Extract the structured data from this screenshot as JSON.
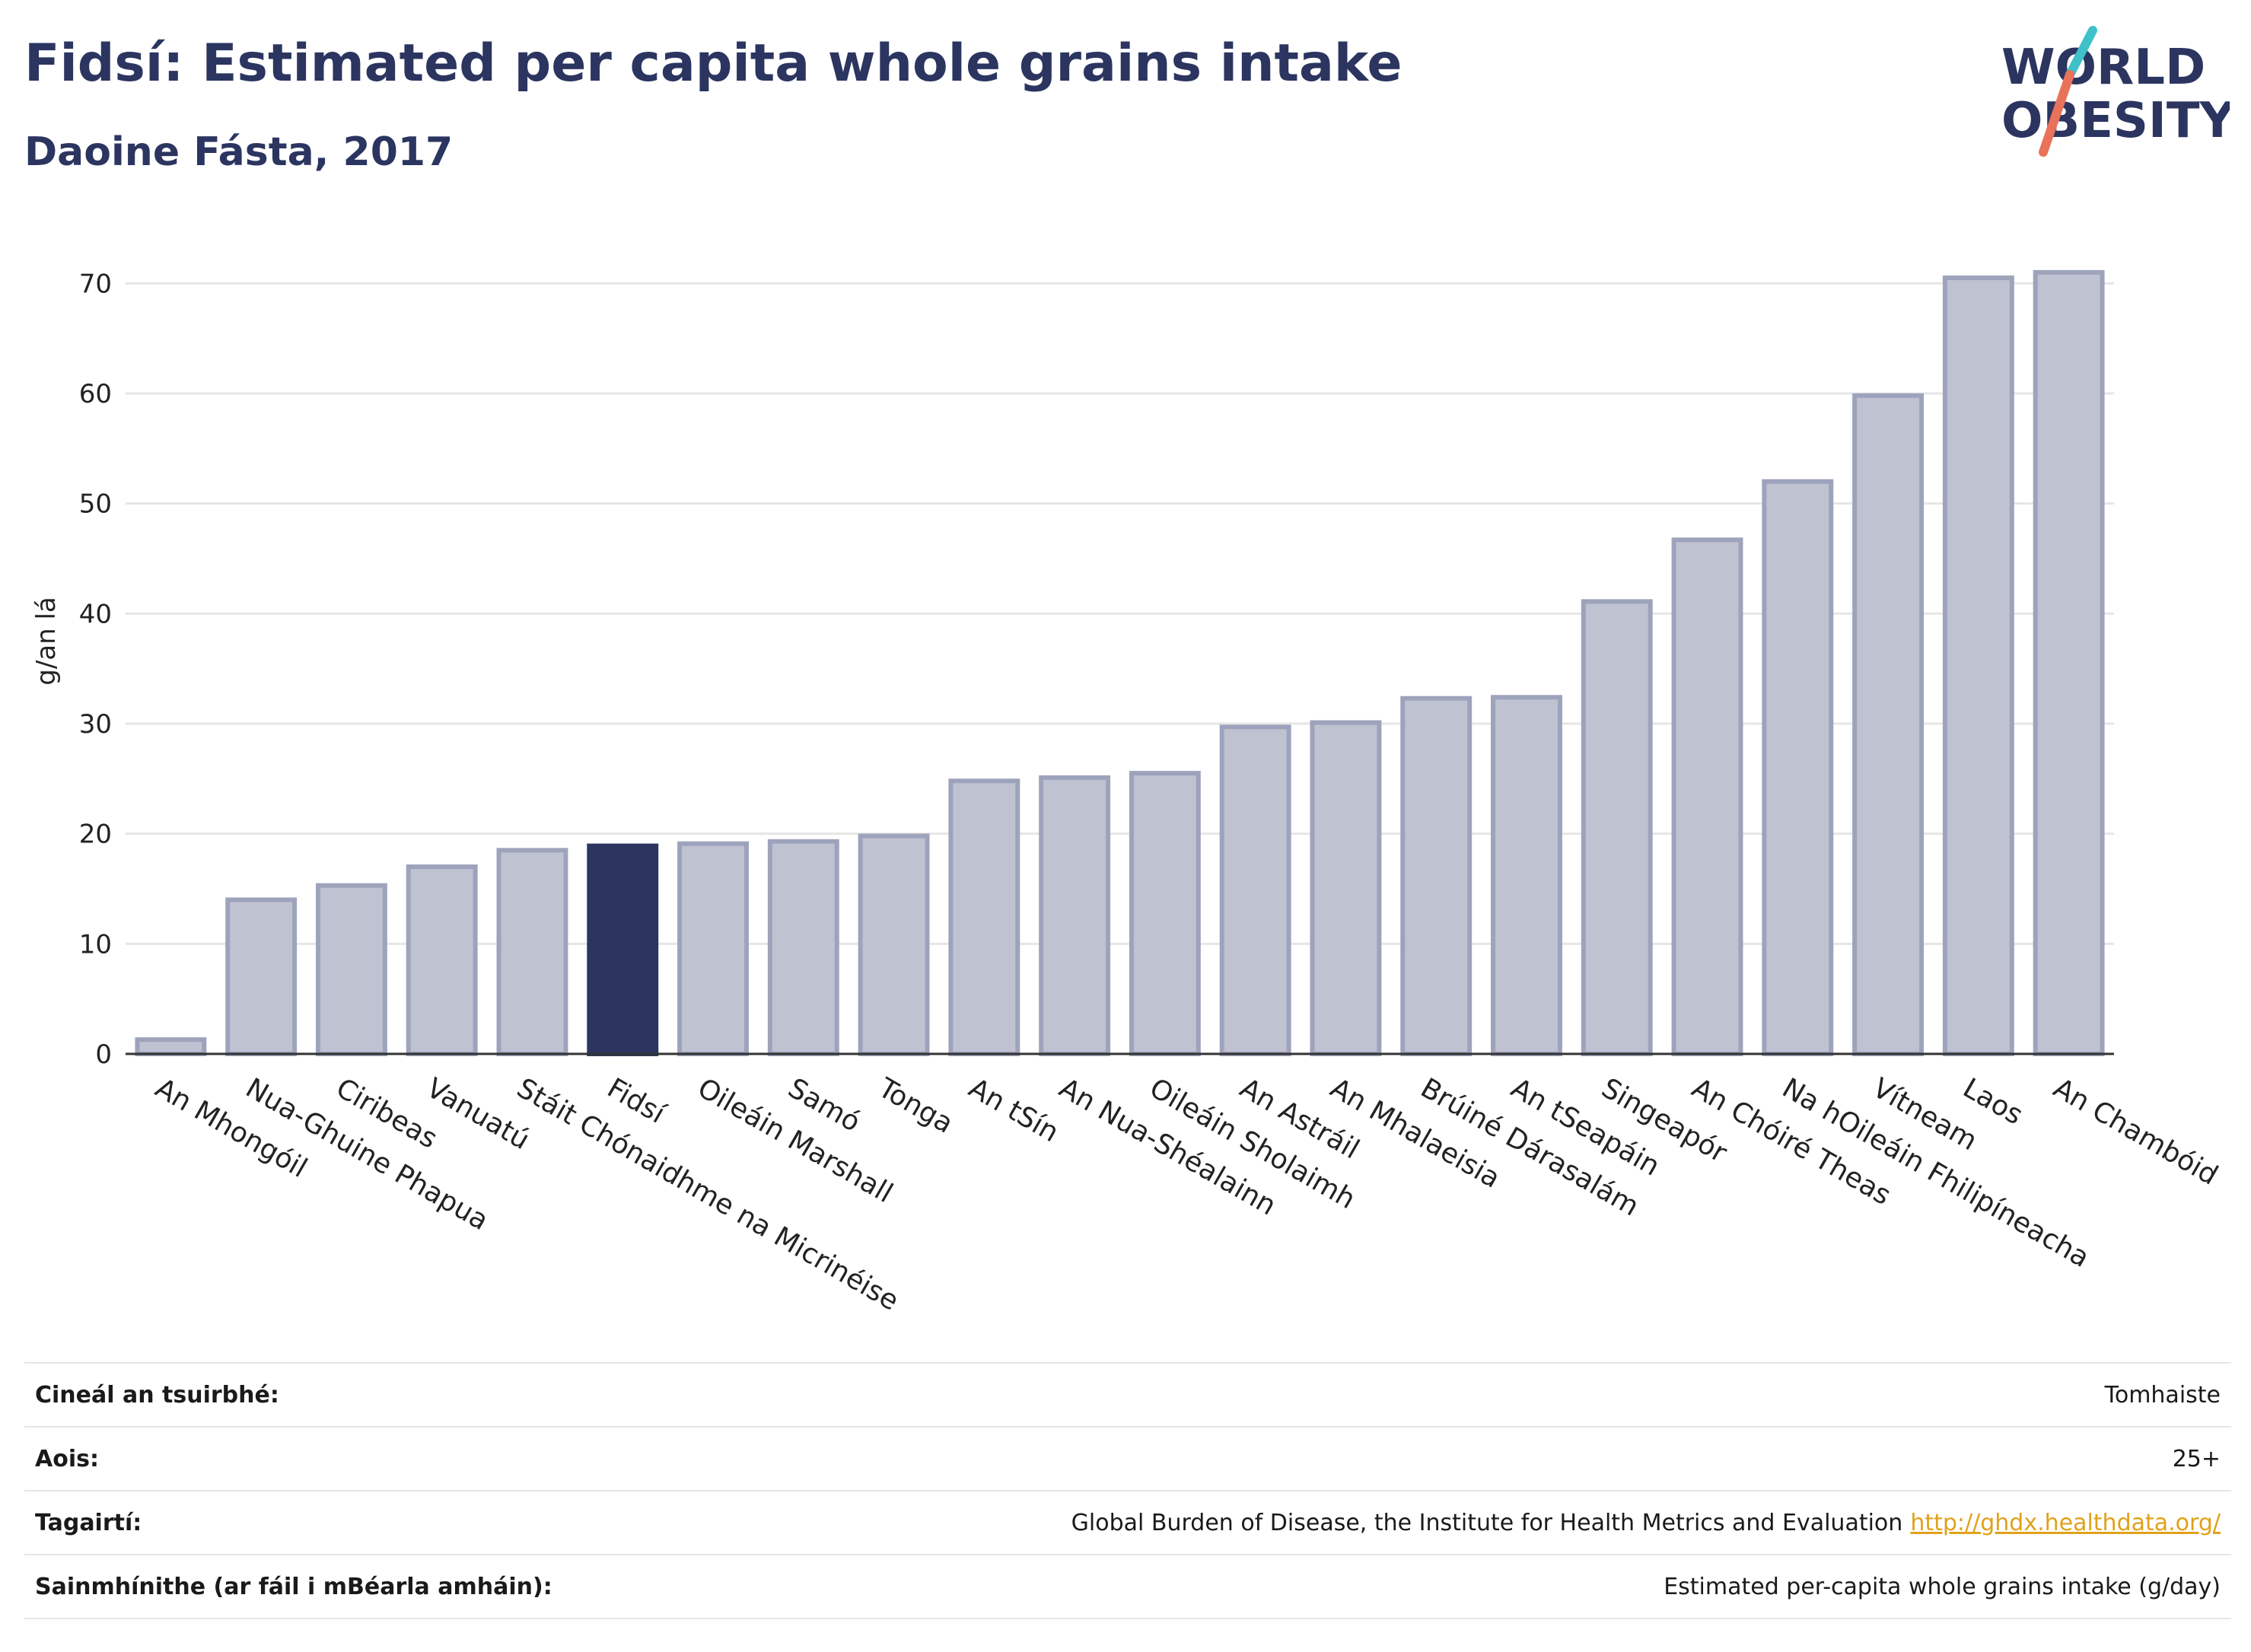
{
  "header": {
    "title": "Fidsí: Estimated per capita whole grains intake",
    "subtitle": "Daoine Fásta, 2017"
  },
  "logo": {
    "line1": "WORLD",
    "line2": "OBESITY",
    "slash_color": "#e8735a",
    "accent_color": "#3fc1c9"
  },
  "colors": {
    "highlight": "#2b3560",
    "bar": "#bfc2d1",
    "bar_border": "#9ea3bc",
    "grid": "#e6e6e6"
  },
  "chart_data": {
    "type": "bar",
    "ylabel": "g/an lá",
    "ylim": [
      0,
      75
    ],
    "yticks": [
      0,
      10,
      20,
      30,
      40,
      50,
      60,
      70
    ],
    "highlight": "Fidsí",
    "categories": [
      "An Mhongóil",
      "Nua-Ghuine Phapua",
      "Ciribeas",
      "Vanuatú",
      "Stáit Chónaidhme na Micrinéise",
      "Fidsí",
      "Oileáin Marshall",
      "Samó",
      "Tonga",
      "An tSín",
      "An Nua-Shéalainn",
      "Oileáin Sholaimh",
      "An Astráil",
      "An Mhalaeisia",
      "Brúiné Dárasalám",
      "An tSeapáin",
      "Singeapór",
      "An Chóiré Theas",
      "Na hOileáin Fhilipíneacha",
      "Vítneam",
      "Laos",
      "An Chambóid"
    ],
    "values": [
      1.3,
      14.0,
      15.3,
      17.0,
      18.5,
      18.9,
      19.1,
      19.3,
      19.8,
      24.8,
      25.1,
      25.5,
      29.7,
      30.1,
      32.3,
      32.4,
      41.1,
      46.7,
      52.0,
      59.8,
      70.5,
      71.0
    ]
  },
  "meta": [
    {
      "label": "Cineál an tsuirbhé:",
      "value": "Tomhaiste"
    },
    {
      "label": "Aois:",
      "value": "25+"
    },
    {
      "label": "Tagairtí:",
      "value": "Global Burden of Disease, the Institute for Health Metrics and Evaluation",
      "link": "http://ghdx.healthdata.org/"
    },
    {
      "label": "Sainmhínithe (ar fáil i mBéarla amháin):",
      "value": "Estimated per-capita whole grains intake (g/day)"
    }
  ]
}
